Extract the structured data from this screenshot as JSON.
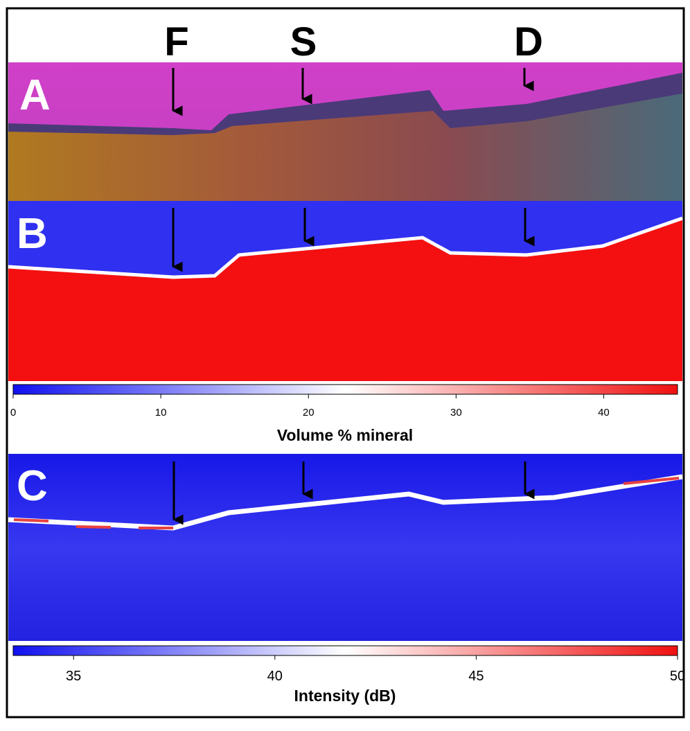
{
  "header": {
    "labels": [
      "F",
      "S",
      "D"
    ]
  },
  "panels": [
    {
      "label": "A"
    },
    {
      "label": "B",
      "colorbar": {
        "title": "Volume % mineral",
        "lim": [
          0,
          45
        ],
        "ticks": [
          0,
          10,
          20,
          30,
          40
        ]
      }
    },
    {
      "label": "C",
      "colorbar": {
        "title": "Intensity (dB)",
        "lim": [
          33.5,
          50
        ],
        "ticks": [
          35,
          40,
          45,
          50
        ]
      }
    }
  ]
}
